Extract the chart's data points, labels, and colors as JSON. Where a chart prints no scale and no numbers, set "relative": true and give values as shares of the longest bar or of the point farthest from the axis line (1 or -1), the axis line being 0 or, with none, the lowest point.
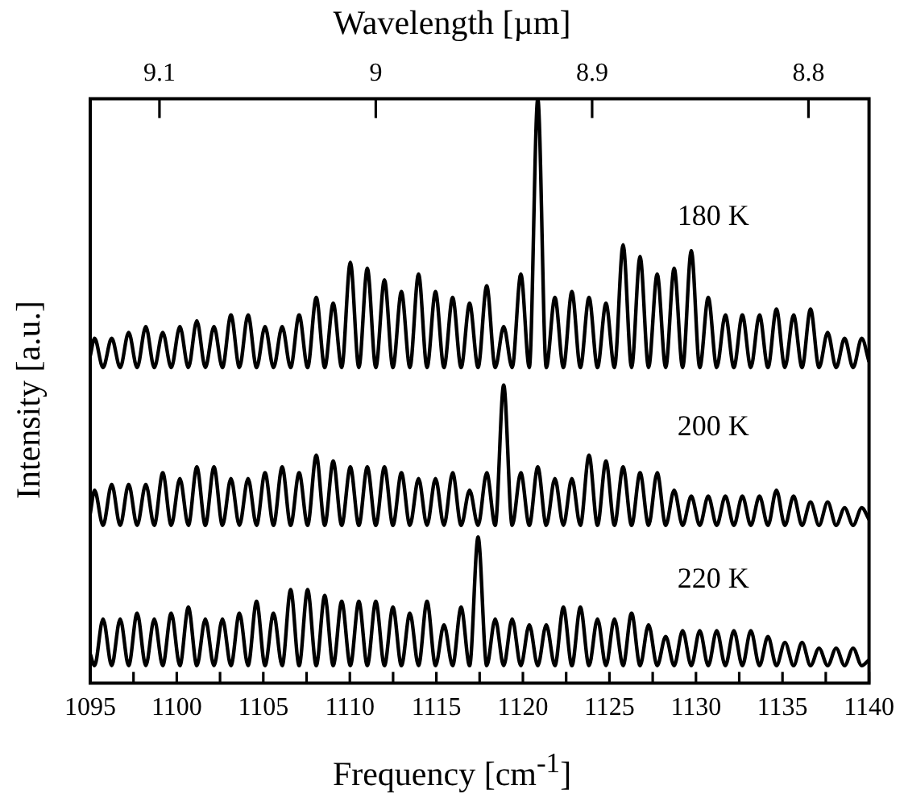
{
  "chart_data": {
    "type": "line",
    "relative": true,
    "xlabel": "Frequency [cm$^{-1}$]",
    "ylabel": "Intensity [a.u.]",
    "x2label": "Wavelength [µm]",
    "xlim": [
      1095,
      1140
    ],
    "xticks": [
      1095,
      {
        "value": 1097.5,
        "label": null
      },
      1100,
      {
        "value": 1102.5,
        "label": null
      },
      1105,
      {
        "value": 1107.5,
        "label": null
      },
      1110,
      {
        "value": 1112.5,
        "label": null
      },
      1115,
      {
        "value": 1117.5,
        "label": null
      },
      1120,
      {
        "value": 1122.5,
        "label": null
      },
      1125,
      {
        "value": 1127.5,
        "label": null
      },
      1130,
      {
        "value": 1132.5,
        "label": null
      },
      1135,
      {
        "value": 1137.5,
        "label": null
      },
      1140
    ],
    "x2lim": [
      9.132,
      8.772
    ],
    "x2ticks": [
      9.1,
      9,
      8.9,
      8.8
    ],
    "grid": false,
    "legend": false,
    "marker": "none",
    "line_style": "solid",
    "x": [
      1095,
      1095.25,
      1095.74,
      1096.24,
      1096.73,
      1097.22,
      1097.71,
      1098.21,
      1098.7,
      1099.19,
      1099.68,
      1100.18,
      1100.67,
      1101.16,
      1101.65,
      1102.15,
      1102.64,
      1103.13,
      1103.62,
      1104.12,
      1104.61,
      1105.1,
      1105.59,
      1106.09,
      1106.58,
      1107.07,
      1107.56,
      1108.06,
      1108.55,
      1109.04,
      1109.53,
      1110.03,
      1110.52,
      1111.01,
      1111.5,
      1112,
      1112.49,
      1112.98,
      1113.47,
      1113.97,
      1114.46,
      1114.95,
      1115.44,
      1115.94,
      1116.43,
      1116.92,
      1117.41,
      1117.91,
      1118.4,
      1118.89,
      1119.38,
      1119.88,
      1120.37,
      1120.86,
      1121.35,
      1121.85,
      1122.34,
      1122.83,
      1123.32,
      1123.82,
      1124.31,
      1124.8,
      1125.29,
      1125.79,
      1126.28,
      1126.77,
      1127.26,
      1127.76,
      1128.25,
      1128.74,
      1129.23,
      1129.73,
      1130.22,
      1130.71,
      1131.2,
      1131.7,
      1132.19,
      1132.68,
      1133.17,
      1133.67,
      1134.16,
      1134.65,
      1135.14,
      1135.64,
      1136.13,
      1136.62,
      1137.11,
      1137.61,
      1138.1,
      1138.59,
      1139.08,
      1139.58,
      1140
    ],
    "series": [
      {
        "name": "180 K",
        "color": "#000000",
        "values": [
          0.56,
          0.59,
          0.54,
          0.59,
          0.54,
          0.6,
          0.54,
          0.61,
          0.54,
          0.6,
          0.54,
          0.61,
          0.54,
          0.62,
          0.54,
          0.61,
          0.54,
          0.63,
          0.54,
          0.63,
          0.54,
          0.61,
          0.54,
          0.61,
          0.54,
          0.63,
          0.54,
          0.66,
          0.54,
          0.65,
          0.54,
          0.72,
          0.54,
          0.71,
          0.54,
          0.69,
          0.54,
          0.67,
          0.54,
          0.7,
          0.54,
          0.67,
          0.54,
          0.66,
          0.54,
          0.65,
          0.54,
          0.68,
          0.54,
          0.61,
          0.54,
          0.7,
          0.54,
          1,
          0.54,
          0.66,
          0.54,
          0.67,
          0.54,
          0.66,
          0.54,
          0.65,
          0.54,
          0.75,
          0.54,
          0.73,
          0.54,
          0.7,
          0.54,
          0.71,
          0.54,
          0.74,
          0.54,
          0.66,
          0.54,
          0.63,
          0.54,
          0.63,
          0.54,
          0.63,
          0.54,
          0.64,
          0.54,
          0.63,
          0.54,
          0.64,
          0.54,
          0.6,
          0.54,
          0.59,
          0.54,
          0.59,
          0.55
        ]
      },
      {
        "name": "200 K",
        "color": "#000000",
        "values": [
          0.29,
          0.33,
          0.27,
          0.34,
          0.27,
          0.34,
          0.27,
          0.34,
          0.27,
          0.36,
          0.27,
          0.35,
          0.27,
          0.37,
          0.27,
          0.37,
          0.27,
          0.35,
          0.27,
          0.35,
          0.27,
          0.36,
          0.27,
          0.37,
          0.27,
          0.36,
          0.27,
          0.39,
          0.27,
          0.38,
          0.27,
          0.37,
          0.27,
          0.37,
          0.27,
          0.37,
          0.27,
          0.36,
          0.27,
          0.35,
          0.27,
          0.35,
          0.27,
          0.36,
          0.27,
          0.33,
          0.27,
          0.36,
          0.27,
          0.51,
          0.27,
          0.36,
          0.27,
          0.37,
          0.27,
          0.35,
          0.27,
          0.35,
          0.27,
          0.39,
          0.27,
          0.38,
          0.27,
          0.37,
          0.27,
          0.36,
          0.27,
          0.36,
          0.27,
          0.33,
          0.27,
          0.32,
          0.27,
          0.32,
          0.27,
          0.32,
          0.27,
          0.32,
          0.27,
          0.32,
          0.27,
          0.33,
          0.27,
          0.32,
          0.27,
          0.31,
          0.27,
          0.31,
          0.27,
          0.3,
          0.27,
          0.3,
          0.28
        ]
      },
      {
        "name": "220 K",
        "color": "#000000",
        "values": [
          0.05,
          0.03,
          0.11,
          0.03,
          0.11,
          0.03,
          0.12,
          0.03,
          0.11,
          0.03,
          0.12,
          0.03,
          0.13,
          0.03,
          0.11,
          0.03,
          0.11,
          0.03,
          0.12,
          0.03,
          0.14,
          0.03,
          0.12,
          0.03,
          0.16,
          0.03,
          0.16,
          0.03,
          0.15,
          0.03,
          0.14,
          0.03,
          0.14,
          0.03,
          0.14,
          0.03,
          0.13,
          0.03,
          0.12,
          0.03,
          0.14,
          0.03,
          0.1,
          0.03,
          0.13,
          0.03,
          0.25,
          0.03,
          0.11,
          0.03,
          0.11,
          0.03,
          0.1,
          0.03,
          0.1,
          0.03,
          0.13,
          0.03,
          0.13,
          0.03,
          0.11,
          0.03,
          0.11,
          0.03,
          0.12,
          0.03,
          0.1,
          0.03,
          0.08,
          0.03,
          0.09,
          0.03,
          0.09,
          0.03,
          0.09,
          0.03,
          0.09,
          0.03,
          0.09,
          0.03,
          0.08,
          0.03,
          0.07,
          0.03,
          0.07,
          0.03,
          0.06,
          0.03,
          0.06,
          0.03,
          0.06,
          0.03,
          0.04
        ]
      }
    ]
  }
}
